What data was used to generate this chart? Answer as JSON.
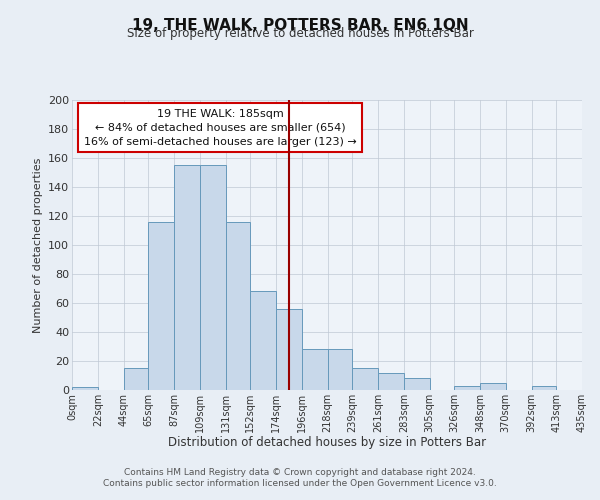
{
  "title": "19, THE WALK, POTTERS BAR, EN6 1QN",
  "subtitle": "Size of property relative to detached houses in Potters Bar",
  "xlabel": "Distribution of detached houses by size in Potters Bar",
  "ylabel": "Number of detached properties",
  "bar_color": "#c8d8ea",
  "bar_edge_color": "#6699bb",
  "background_color": "#e8eef5",
  "plot_bg_color": "#eef3f9",
  "grid_color": "#c0c8d4",
  "vline_x": 185,
  "vline_color": "#990000",
  "bin_edges": [
    0,
    22,
    44,
    65,
    87,
    109,
    131,
    152,
    174,
    196,
    218,
    239,
    261,
    283,
    305,
    326,
    348,
    370,
    392,
    413,
    435
  ],
  "bar_heights": [
    2,
    0,
    15,
    116,
    155,
    155,
    116,
    68,
    56,
    28,
    28,
    15,
    12,
    8,
    0,
    3,
    5,
    0,
    3,
    0
  ],
  "tick_labels": [
    "0sqm",
    "22sqm",
    "44sqm",
    "65sqm",
    "87sqm",
    "109sqm",
    "131sqm",
    "152sqm",
    "174sqm",
    "196sqm",
    "218sqm",
    "239sqm",
    "261sqm",
    "283sqm",
    "305sqm",
    "326sqm",
    "348sqm",
    "370sqm",
    "392sqm",
    "413sqm",
    "435sqm"
  ],
  "ylim": [
    0,
    200
  ],
  "yticks": [
    0,
    20,
    40,
    60,
    80,
    100,
    120,
    140,
    160,
    180,
    200
  ],
  "annotation_title": "19 THE WALK: 185sqm",
  "annotation_line1": "← 84% of detached houses are smaller (654)",
  "annotation_line2": "16% of semi-detached houses are larger (123) →",
  "annotation_box_color": "#ffffff",
  "annotation_box_edge": "#cc0000",
  "footer_line1": "Contains HM Land Registry data © Crown copyright and database right 2024.",
  "footer_line2": "Contains public sector information licensed under the Open Government Licence v3.0."
}
